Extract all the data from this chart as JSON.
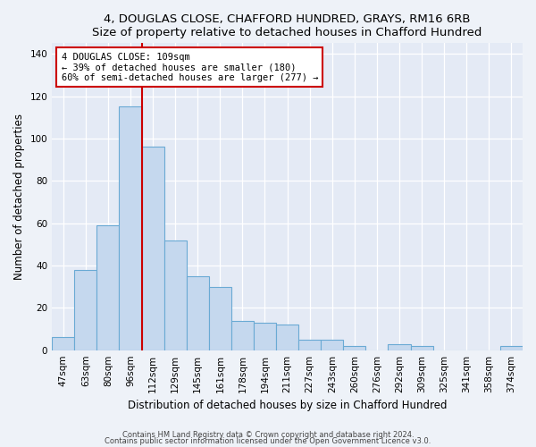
{
  "title1": "4, DOUGLAS CLOSE, CHAFFORD HUNDRED, GRAYS, RM16 6RB",
  "title2": "Size of property relative to detached houses in Chafford Hundred",
  "xlabel": "Distribution of detached houses by size in Chafford Hundred",
  "ylabel": "Number of detached properties",
  "categories": [
    "47sqm",
    "63sqm",
    "80sqm",
    "96sqm",
    "112sqm",
    "129sqm",
    "145sqm",
    "161sqm",
    "178sqm",
    "194sqm",
    "211sqm",
    "227sqm",
    "243sqm",
    "260sqm",
    "276sqm",
    "292sqm",
    "309sqm",
    "325sqm",
    "341sqm",
    "358sqm",
    "374sqm"
  ],
  "values": [
    6,
    38,
    59,
    115,
    96,
    52,
    35,
    30,
    14,
    13,
    12,
    5,
    5,
    2,
    0,
    3,
    2,
    0,
    0,
    0,
    2
  ],
  "bar_color": "#c5d8ee",
  "bar_edge_color": "#6aaad4",
  "vline_color": "#cc0000",
  "annotation_line1": "4 DOUGLAS CLOSE: 109sqm",
  "annotation_line2": "← 39% of detached houses are smaller (180)",
  "annotation_line3": "60% of semi-detached houses are larger (277) →",
  "annotation_box_color": "#ffffff",
  "annotation_box_edge": "#cc0000",
  "ylim": [
    0,
    145
  ],
  "yticks": [
    0,
    20,
    40,
    60,
    80,
    100,
    120,
    140
  ],
  "footer1": "Contains HM Land Registry data © Crown copyright and database right 2024.",
  "footer2": "Contains public sector information licensed under the Open Government Licence v3.0.",
  "bg_color": "#eef2f8",
  "plot_bg_color": "#e4eaf5",
  "title_fontsize": 9.5,
  "tick_fontsize": 7.5,
  "ylabel_fontsize": 8.5,
  "xlabel_fontsize": 8.5
}
